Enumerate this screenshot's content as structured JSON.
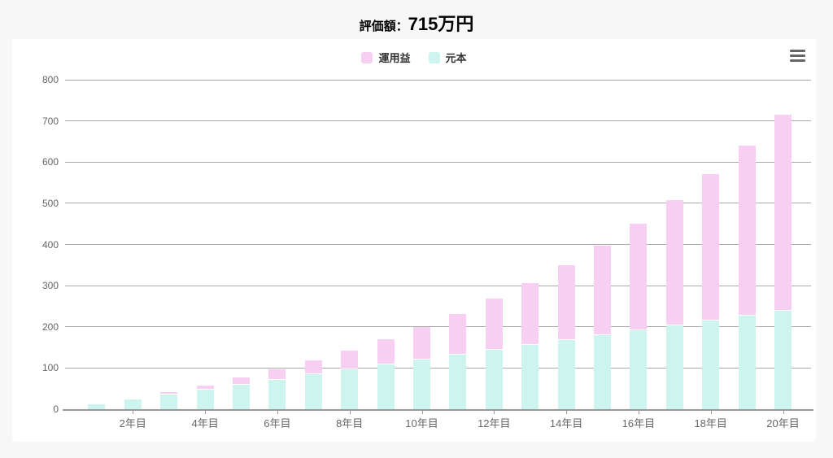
{
  "header": {
    "title_label": "評価額：",
    "title_value": "715万円"
  },
  "toolbar": {
    "context_menu_icon": "hamburger-menu-icon"
  },
  "chart_data": {
    "type": "bar",
    "stacked": true,
    "orientation": "vertical",
    "x_count": 20,
    "x_unit_suffix": "年目",
    "x_ticks": [
      {
        "pos": 2,
        "label": "2年目"
      },
      {
        "pos": 4,
        "label": "4年目"
      },
      {
        "pos": 6,
        "label": "6年目"
      },
      {
        "pos": 8,
        "label": "8年目"
      },
      {
        "pos": 10,
        "label": "10年目"
      },
      {
        "pos": 12,
        "label": "12年目"
      },
      {
        "pos": 14,
        "label": "14年目"
      },
      {
        "pos": 16,
        "label": "16年目"
      },
      {
        "pos": 18,
        "label": "18年目"
      },
      {
        "pos": 20,
        "label": "20年目"
      }
    ],
    "series": [
      {
        "name": "運用益",
        "slug": "gain",
        "color": "#f6cff2",
        "values": [
          1,
          2,
          5,
          10,
          17,
          25,
          35,
          47,
          62,
          80,
          100,
          124,
          151,
          182,
          218,
          258,
          304,
          355,
          412,
          475
        ]
      },
      {
        "name": "元本",
        "slug": "principal",
        "color": "#cdf4ef",
        "values": [
          12,
          24,
          36,
          48,
          60,
          72,
          84,
          96,
          108,
          120,
          132,
          144,
          156,
          168,
          180,
          192,
          204,
          216,
          228,
          240
        ]
      }
    ],
    "stack_bottom_series": "元本",
    "totals": [
      13,
      26,
      41,
      58,
      77,
      97,
      119,
      143,
      170,
      200,
      232,
      268,
      307,
      350,
      398,
      450,
      508,
      571,
      640,
      715
    ],
    "ylim": [
      0,
      800
    ],
    "y_ticks": [
      0,
      100,
      200,
      300,
      400,
      500,
      600,
      700,
      800
    ],
    "grid": true,
    "legend_position": "top-center"
  }
}
